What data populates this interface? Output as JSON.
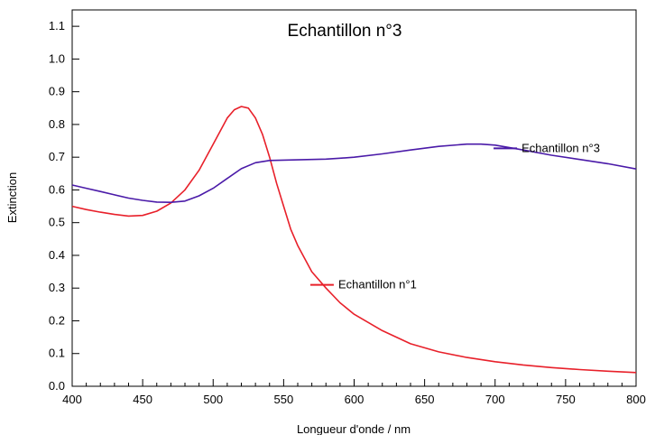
{
  "chart_data": {
    "type": "line",
    "title": "Echantillon n°3",
    "xlabel": "Longueur d'onde / nm",
    "ylabel": "Extinction",
    "xlim": [
      400,
      800
    ],
    "ylim": [
      0,
      1.15
    ],
    "xticks": [
      "400",
      "450",
      "500",
      "550",
      "600",
      "650",
      "700",
      "750",
      "800"
    ],
    "yticks": [
      "0.0",
      "0.1",
      "0.2",
      "0.3",
      "0.4",
      "0.5",
      "0.6",
      "0.7",
      "0.8",
      "0.9",
      "1.0",
      "1.1"
    ],
    "grid": false,
    "series": [
      {
        "name": "Echantillon n°1",
        "color": "#e8202a",
        "x": [
          400,
          410,
          420,
          430,
          440,
          450,
          460,
          470,
          480,
          490,
          500,
          505,
          510,
          515,
          520,
          525,
          530,
          535,
          540,
          545,
          550,
          555,
          560,
          570,
          580,
          590,
          600,
          620,
          640,
          660,
          680,
          700,
          720,
          740,
          760,
          780,
          800
        ],
        "y": [
          0.55,
          0.54,
          0.532,
          0.525,
          0.52,
          0.522,
          0.535,
          0.56,
          0.6,
          0.66,
          0.74,
          0.78,
          0.82,
          0.845,
          0.855,
          0.85,
          0.82,
          0.77,
          0.7,
          0.62,
          0.55,
          0.48,
          0.43,
          0.35,
          0.3,
          0.255,
          0.22,
          0.17,
          0.13,
          0.105,
          0.088,
          0.075,
          0.065,
          0.057,
          0.051,
          0.046,
          0.042
        ]
      },
      {
        "name": "Echantillon n°3",
        "color": "#4a1aa8",
        "x": [
          400,
          410,
          420,
          430,
          440,
          450,
          460,
          470,
          480,
          490,
          500,
          510,
          520,
          530,
          540,
          550,
          560,
          570,
          580,
          590,
          600,
          620,
          640,
          660,
          680,
          690,
          700,
          720,
          740,
          760,
          780,
          800
        ],
        "y": [
          0.615,
          0.605,
          0.595,
          0.585,
          0.575,
          0.568,
          0.563,
          0.562,
          0.566,
          0.582,
          0.605,
          0.635,
          0.665,
          0.683,
          0.69,
          0.691,
          0.692,
          0.693,
          0.694,
          0.697,
          0.7,
          0.71,
          0.722,
          0.733,
          0.74,
          0.74,
          0.737,
          0.722,
          0.706,
          0.693,
          0.68,
          0.664
        ]
      }
    ]
  }
}
